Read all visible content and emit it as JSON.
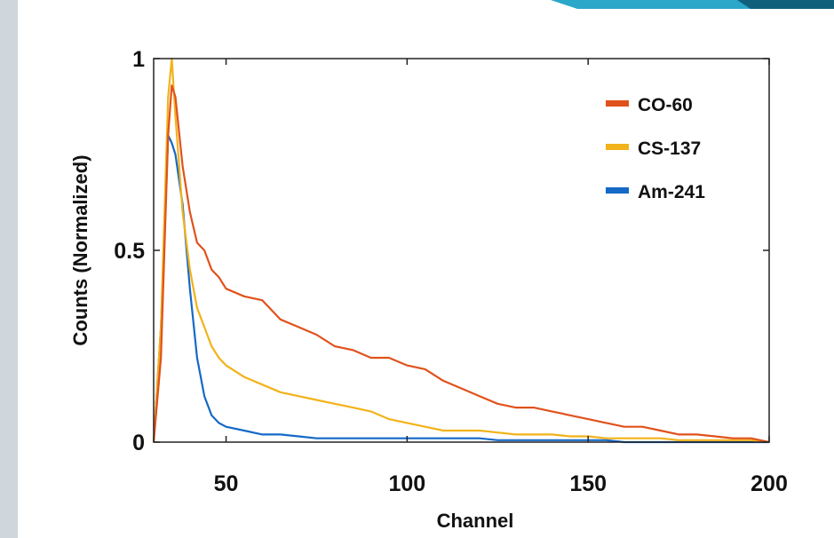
{
  "chart_data": {
    "type": "line",
    "xlabel": "Channel",
    "ylabel": "Counts (Normalized)",
    "xlim": [
      30,
      200
    ],
    "ylim": [
      0,
      1
    ],
    "xticks": [
      "50",
      "100",
      "150",
      "200"
    ],
    "yticks": [
      "0",
      "0.5",
      "1"
    ],
    "grid": false,
    "legend_position": "top-right",
    "x": [
      30,
      32,
      34,
      35,
      36,
      38,
      40,
      42,
      44,
      46,
      48,
      50,
      55,
      60,
      65,
      70,
      75,
      80,
      85,
      90,
      95,
      100,
      105,
      110,
      115,
      120,
      125,
      130,
      135,
      140,
      145,
      150,
      155,
      160,
      165,
      170,
      175,
      180,
      185,
      190,
      195,
      200
    ],
    "series": [
      {
        "name": "CO-60",
        "color": "#e0521c",
        "values": [
          0.0,
          0.22,
          0.8,
          0.93,
          0.9,
          0.72,
          0.6,
          0.52,
          0.5,
          0.45,
          0.43,
          0.4,
          0.38,
          0.37,
          0.32,
          0.3,
          0.28,
          0.25,
          0.24,
          0.22,
          0.22,
          0.2,
          0.19,
          0.16,
          0.14,
          0.12,
          0.1,
          0.09,
          0.09,
          0.08,
          0.07,
          0.06,
          0.05,
          0.04,
          0.04,
          0.03,
          0.02,
          0.02,
          0.015,
          0.01,
          0.01,
          0.0
        ]
      },
      {
        "name": "CS-137",
        "color": "#f2b21a",
        "values": [
          0.0,
          0.3,
          0.9,
          1.0,
          0.85,
          0.6,
          0.45,
          0.35,
          0.3,
          0.25,
          0.22,
          0.2,
          0.17,
          0.15,
          0.13,
          0.12,
          0.11,
          0.1,
          0.09,
          0.08,
          0.06,
          0.05,
          0.04,
          0.03,
          0.03,
          0.03,
          0.025,
          0.02,
          0.02,
          0.02,
          0.015,
          0.015,
          0.01,
          0.01,
          0.01,
          0.01,
          0.005,
          0.005,
          0.005,
          0.005,
          0.005,
          0.0
        ]
      },
      {
        "name": "Am-241",
        "color": "#1569c7",
        "values": [
          0.0,
          0.3,
          0.8,
          0.78,
          0.75,
          0.62,
          0.4,
          0.22,
          0.12,
          0.07,
          0.05,
          0.04,
          0.03,
          0.02,
          0.02,
          0.015,
          0.01,
          0.01,
          0.01,
          0.01,
          0.01,
          0.01,
          0.01,
          0.01,
          0.01,
          0.01,
          0.005,
          0.005,
          0.005,
          0.005,
          0.005,
          0.005,
          0.005,
          0.0,
          0.0,
          0.0,
          0.0,
          0.0,
          0.0,
          0.0,
          0.0,
          0.0
        ]
      }
    ]
  }
}
